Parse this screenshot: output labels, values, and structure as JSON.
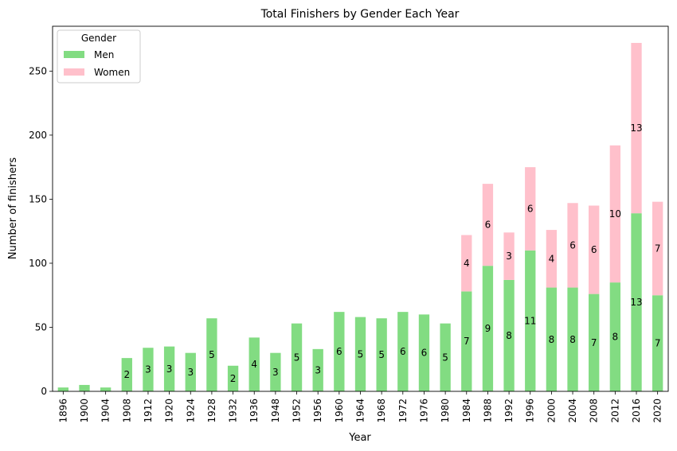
{
  "chart_data": {
    "type": "bar",
    "stacked": true,
    "title": "Total Finishers by Gender Each Year",
    "xlabel": "Year",
    "ylabel": "Number of finishers",
    "ylim": [
      0,
      285
    ],
    "yticks": [
      0,
      50,
      100,
      150,
      200,
      250
    ],
    "grid": false,
    "legend": {
      "title": "Gender",
      "placement": "top-left"
    },
    "categories": [
      "1896",
      "1900",
      "1904",
      "1908",
      "1912",
      "1920",
      "1924",
      "1928",
      "1932",
      "1936",
      "1948",
      "1952",
      "1956",
      "1960",
      "1964",
      "1968",
      "1972",
      "1976",
      "1980",
      "1984",
      "1988",
      "1992",
      "1996",
      "2000",
      "2004",
      "2008",
      "2012",
      "2016",
      "2020"
    ],
    "series": [
      {
        "name": "Men",
        "color": "#82dc82",
        "values": [
          3,
          5,
          3,
          26,
          34,
          35,
          30,
          57,
          20,
          42,
          30,
          53,
          33,
          62,
          58,
          57,
          62,
          60,
          53,
          78,
          98,
          87,
          110,
          81,
          81,
          76,
          85,
          139,
          75
        ],
        "labels": [
          "",
          "",
          "",
          "2",
          "3",
          "3",
          "3",
          "5",
          "2",
          "4",
          "3",
          "5",
          "3",
          "6",
          "5",
          "5",
          "6",
          "6",
          "5",
          "7",
          "9",
          "8",
          "11",
          "8",
          "8",
          "7",
          "8",
          "13",
          "7"
        ]
      },
      {
        "name": "Women",
        "color": "#ffc0cb",
        "values": [
          0,
          0,
          0,
          0,
          0,
          0,
          0,
          0,
          0,
          0,
          0,
          0,
          0,
          0,
          0,
          0,
          0,
          0,
          0,
          44,
          64,
          37,
          65,
          45,
          66,
          69,
          107,
          133,
          73
        ],
        "labels": [
          "",
          "",
          "",
          "",
          "",
          "",
          "",
          "",
          "",
          "",
          "",
          "",
          "",
          "",
          "",
          "",
          "",
          "",
          "",
          "4",
          "6",
          "3",
          "6",
          "4",
          "6",
          "6",
          "10",
          "13",
          "7"
        ]
      }
    ]
  }
}
